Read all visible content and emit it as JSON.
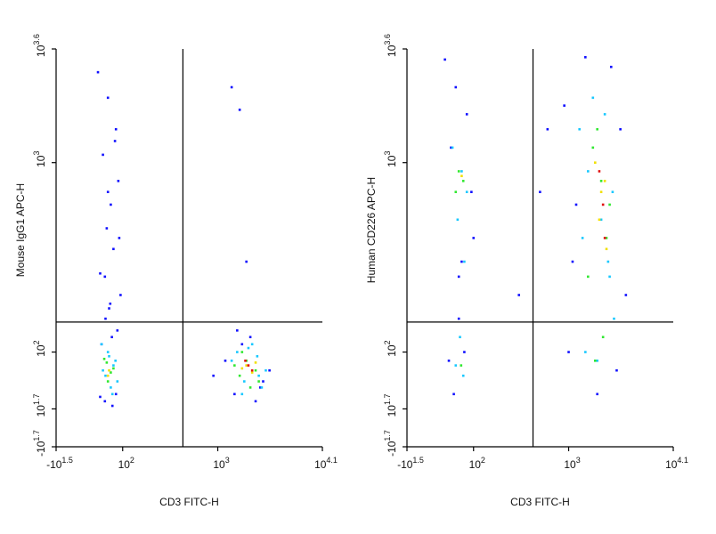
{
  "chart_data": [
    {
      "type": "scatter",
      "xlabel": "CD3 FITC-H",
      "ylabel": "Mouse IgG1 APC-H",
      "xscale": "symlog",
      "yscale": "symlog",
      "xlim": [
        -31.62,
        12589
      ],
      "ylim": [
        -50.12,
        3981
      ],
      "xticks": [
        {
          "value": -31.62,
          "label": "-10",
          "exponent": "1.5"
        },
        {
          "value": 100,
          "label": "10",
          "exponent": "2"
        },
        {
          "value": 1000,
          "label": "10",
          "exponent": "3"
        },
        {
          "value": 12589,
          "label": "10",
          "exponent": "4.1"
        }
      ],
      "yticks": [
        {
          "value": -50.12,
          "label": "-10",
          "exponent": "1.7"
        },
        {
          "value": 50.12,
          "label": "10",
          "exponent": "1.7"
        },
        {
          "value": 100,
          "label": "10",
          "exponent": "2"
        },
        {
          "value": 1000,
          "label": "10",
          "exponent": "3"
        },
        {
          "value": 3981,
          "label": "10",
          "exponent": "3.6"
        }
      ],
      "gates": {
        "x": 430,
        "y": 144
      },
      "series": [
        {
          "color": "#1010ff",
          "x": [
            55,
            70,
            85,
            62,
            90,
            75,
            68,
            80,
            58,
            95,
            72,
            66,
            88,
            77,
            60,
            83,
            70,
            92,
            65,
            74,
            1500,
            2500,
            1800,
            3000,
            1200,
            2200,
            3500,
            1600,
            2800,
            900,
            65,
            78,
            85,
            58,
            1400,
            1700,
            2000
          ],
          "y": [
            3000,
            2200,
            1500,
            1100,
            800,
            600,
            450,
            350,
            260,
            200,
            170,
            150,
            130,
            120,
            110,
            1300,
            700,
            400,
            250,
            180,
            60,
            55,
            110,
            70,
            90,
            120,
            80,
            130,
            65,
            75,
            55,
            52,
            60,
            58,
            2500,
            1900,
            300
          ]
        },
        {
          "color": "#18c8ff",
          "x": [
            60,
            72,
            80,
            66,
            88,
            75,
            70,
            84,
            62,
            78,
            1400,
            2600,
            1900,
            3200,
            1600,
            2300,
            2900,
            1800,
            2100,
            2700
          ],
          "y": [
            110,
            95,
            85,
            75,
            70,
            65,
            100,
            90,
            80,
            60,
            90,
            95,
            70,
            80,
            100,
            110,
            65,
            60,
            105,
            75
          ]
        },
        {
          "color": "#30e830",
          "x": [
            68,
            75,
            70,
            80,
            64,
            2000,
            1700,
            2500,
            2200,
            1800,
            2700,
            1500
          ],
          "y": [
            88,
            78,
            70,
            82,
            92,
            90,
            75,
            80,
            65,
            100,
            70,
            85
          ]
        },
        {
          "color": "#f0e000",
          "x": [
            72,
            70,
            2000,
            2300,
            1800,
            2500
          ],
          "y": [
            80,
            75,
            85,
            78,
            82,
            88
          ]
        },
        {
          "color": "#e01010",
          "x": [
            2100,
            2300,
            1950
          ],
          "y": [
            85,
            80,
            90
          ]
        }
      ]
    },
    {
      "type": "scatter",
      "xlabel": "CD3 FITC-H",
      "ylabel": "Human CD226 APC-H",
      "xscale": "symlog",
      "yscale": "symlog",
      "xlim": [
        -31.62,
        12589
      ],
      "ylim": [
        -50.12,
        3981
      ],
      "xticks": [
        {
          "value": -31.62,
          "label": "-10",
          "exponent": "1.5"
        },
        {
          "value": 100,
          "label": "10",
          "exponent": "2"
        },
        {
          "value": 1000,
          "label": "10",
          "exponent": "3"
        },
        {
          "value": 12589,
          "label": "10",
          "exponent": "4.1"
        }
      ],
      "yticks": [
        {
          "value": -50.12,
          "label": "-10",
          "exponent": "1.7"
        },
        {
          "value": 50.12,
          "label": "10",
          "exponent": "1.7"
        },
        {
          "value": 100,
          "label": "10",
          "exponent": "2"
        },
        {
          "value": 1000,
          "label": "10",
          "exponent": "3"
        },
        {
          "value": 3981,
          "label": "10",
          "exponent": "3.6"
        }
      ],
      "gates": {
        "x": 422,
        "y": 144
      },
      "series": [
        {
          "color": "#1010ff",
          "x": [
            50,
            65,
            85,
            95,
            58,
            75,
            100,
            70,
            80,
            62,
            900,
            1200,
            3500,
            4000,
            1000,
            2800,
            1500,
            3200,
            2000,
            1100,
            500,
            300,
            600,
            70,
            55
          ],
          "y": [
            3500,
            2500,
            1800,
            700,
            1200,
            300,
            400,
            150,
            100,
            60,
            2000,
            600,
            1500,
            200,
            100,
            3200,
            3600,
            80,
            60,
            300,
            700,
            200,
            1500,
            250,
            90
          ]
        },
        {
          "color": "#18c8ff",
          "x": [
            60,
            75,
            85,
            68,
            80,
            72,
            65,
            78,
            1300,
            1600,
            2200,
            2600,
            3000,
            1800,
            2400,
            1500,
            2900,
            2000,
            1400,
            2700
          ],
          "y": [
            1200,
            900,
            700,
            500,
            300,
            120,
            85,
            75,
            1500,
            900,
            500,
            300,
            150,
            2200,
            1800,
            100,
            700,
            90,
            400,
            250
          ]
        },
        {
          "color": "#30e830",
          "x": [
            70,
            78,
            65,
            74,
            1800,
            2200,
            2500,
            1600,
            2000,
            2700,
            2300,
            1900
          ],
          "y": [
            900,
            800,
            700,
            85,
            1200,
            800,
            400,
            250,
            1500,
            600,
            120,
            90
          ]
        },
        {
          "color": "#f0e000",
          "x": [
            75,
            1900,
            2200,
            2500,
            2100,
            2400
          ],
          "y": [
            850,
            1000,
            700,
            350,
            500,
            800
          ]
        },
        {
          "color": "#e01010",
          "x": [
            2100,
            2400,
            2300
          ],
          "y": [
            900,
            400,
            600
          ]
        }
      ]
    }
  ]
}
